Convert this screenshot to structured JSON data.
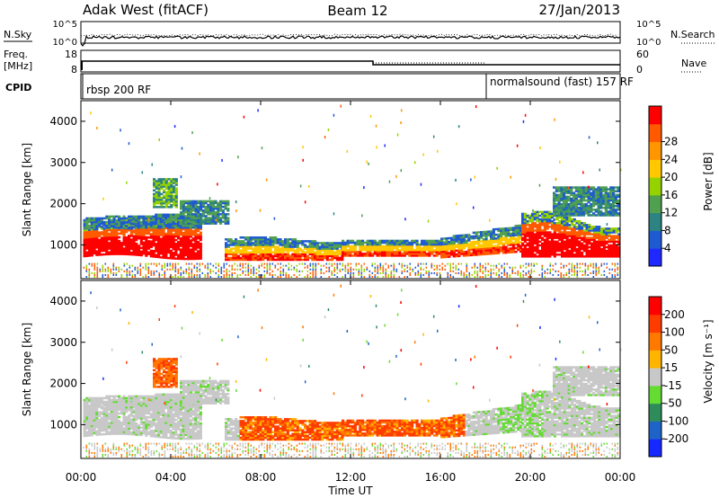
{
  "header": {
    "site": "Adak West (fitACF)",
    "beam": "Beam 12",
    "date": "27/Jan/2013"
  },
  "top_panel": {
    "left_label": "N.Sky",
    "right_label": "N.Search",
    "left_ticks": [
      "10^5",
      "10^0"
    ],
    "right_ticks": [
      "10^5",
      "10^0"
    ]
  },
  "freq_panel": {
    "left_label_1": "Freq.",
    "left_label_2": "[MHz]",
    "right_label": "Nave",
    "left_ticks": [
      "18",
      "8"
    ],
    "right_ticks": [
      "60",
      "0"
    ]
  },
  "cpid_panel": {
    "label": "CPID",
    "programs": [
      {
        "name": "rbsp 200 RF",
        "start_hour": 0
      },
      {
        "name": "normalsound (fast) 157 RF",
        "start_hour": 18
      }
    ]
  },
  "chart_data": [
    {
      "type": "heatmap",
      "name": "power",
      "ylabel": "Slant Range [km]",
      "ylim": [
        180,
        4500
      ],
      "yticks": [
        "1000",
        "2000",
        "3000",
        "4000"
      ],
      "xlim": [
        0,
        24
      ],
      "colorbar": {
        "label": "Power [dB]",
        "ticks": [
          "4",
          "8",
          "12",
          "16",
          "20",
          "24",
          "28"
        ],
        "colors": [
          "#1e28ff",
          "#1e5ad2",
          "#2d8282",
          "#50a050",
          "#96d200",
          "#ffc800",
          "#ff9600",
          "#ff5a00",
          "#ff0000"
        ]
      }
    },
    {
      "type": "heatmap",
      "name": "velocity",
      "ylabel": "Slant Range [km]",
      "ylim": [
        180,
        4500
      ],
      "yticks": [
        "1000",
        "2000",
        "3000",
        "4000"
      ],
      "xlim": [
        0,
        24
      ],
      "colorbar": {
        "label": "Velocity [m s⁻¹]",
        "ticks": [
          "200",
          "100",
          "50",
          "15",
          "-15",
          "-50",
          "-100",
          "-200"
        ],
        "colors": [
          "#1428ff",
          "#1e64c8",
          "#2d8c5a",
          "#64dc32",
          "#c8c8c8",
          "#ffb400",
          "#ff7800",
          "#ff3c00",
          "#ff0000"
        ]
      }
    }
  ],
  "x_axis": {
    "ticks": [
      "00:00",
      "04:00",
      "08:00",
      "12:00",
      "16:00",
      "20:00",
      "00:00"
    ],
    "label": "Time UT"
  }
}
